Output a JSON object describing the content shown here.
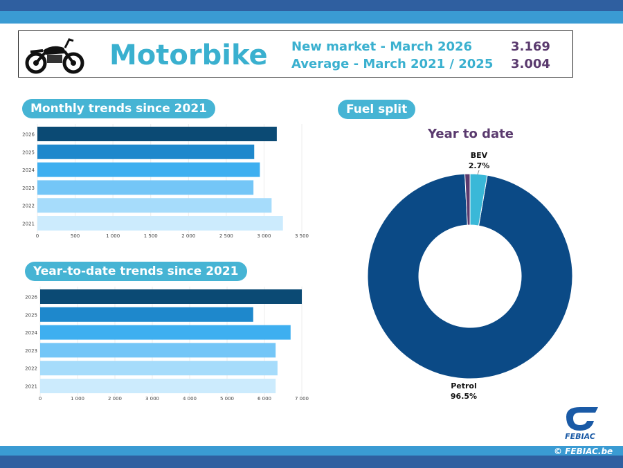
{
  "header": {
    "title": "Motorbike",
    "line1_label": "New market - March 2026",
    "line1_value": "3.169",
    "line2_label": "Average - March 2021 / 2025",
    "line2_value": "3.004"
  },
  "footer": {
    "copyright": "© FEBIAC.be",
    "logo_text": "FEBIAC"
  },
  "colors": {
    "navy": "#0b4a74",
    "blue": "#1e88cc",
    "mid": "#3eaff0",
    "light": "#74c6f7",
    "lighter": "#a6dcfb",
    "lightest": "#ccebfd",
    "petrol": "#0b4a86",
    "bev": "#3ab8d8",
    "other": "#5a3a6e"
  },
  "chart_data": [
    {
      "type": "bar",
      "orientation": "horizontal",
      "title": "Monthly trends since 2021",
      "categories": [
        "2026",
        "2025",
        "2024",
        "2023",
        "2022",
        "2021"
      ],
      "values": [
        3169,
        2870,
        2945,
        2860,
        3100,
        3250
      ],
      "xlim": [
        0,
        3500
      ],
      "xticks": [
        "0",
        "500",
        "1 000",
        "1 500",
        "2 000",
        "2 500",
        "3 000",
        "3 500"
      ]
    },
    {
      "type": "bar",
      "orientation": "horizontal",
      "title": "Year-to-date trends since 2021",
      "categories": [
        "2026",
        "2025",
        "2024",
        "2023",
        "2022",
        "2021"
      ],
      "values": [
        7000,
        5700,
        6700,
        6300,
        6350,
        6300
      ],
      "xlim": [
        0,
        7000
      ],
      "xticks": [
        "0",
        "1 000",
        "2 000",
        "3 000",
        "4 000",
        "5 000",
        "6 000",
        "7 000"
      ]
    },
    {
      "type": "pie",
      "donut": true,
      "section_title": "Fuel split",
      "title": "Year to date",
      "slices": [
        {
          "label": "Petrol",
          "value": 96.5,
          "display": "96.5%"
        },
        {
          "label": "",
          "value": 0.8,
          "display": ""
        },
        {
          "label": "BEV",
          "value": 2.7,
          "display": "2.7%"
        }
      ]
    }
  ]
}
